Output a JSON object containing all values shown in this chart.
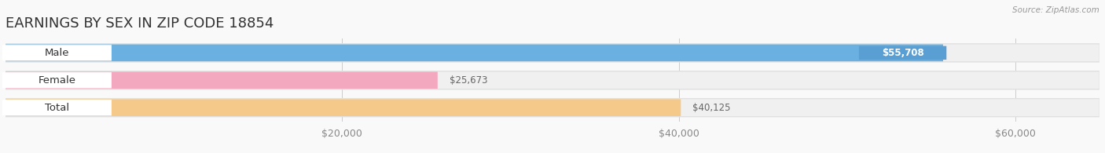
{
  "title": "EARNINGS BY SEX IN ZIP CODE 18854",
  "source_text": "Source: ZipAtlas.com",
  "categories": [
    "Male",
    "Female",
    "Total"
  ],
  "values": [
    55708,
    25673,
    40125
  ],
  "bar_colors": [
    "#6ab0e0",
    "#f4a8c0",
    "#f5c98a"
  ],
  "value_label_bg_colors": [
    "#5a9fd4",
    "#ffffff",
    "#ffffff"
  ],
  "value_label_text_colors": [
    "#ffffff",
    "#666666",
    "#666666"
  ],
  "value_labels": [
    "$55,708",
    "$25,673",
    "$40,125"
  ],
  "bg_color": "#f9f9f9",
  "bar_bg_color": "#e8e8e8",
  "bar_outer_bg": "#f0f0f0",
  "xlim": [
    0,
    65000
  ],
  "xticks": [
    20000,
    40000,
    60000
  ],
  "xtick_labels": [
    "$20,000",
    "$40,000",
    "$60,000"
  ],
  "title_fontsize": 13,
  "tick_fontsize": 9,
  "label_fontsize": 9.5,
  "value_fontsize": 8.5
}
